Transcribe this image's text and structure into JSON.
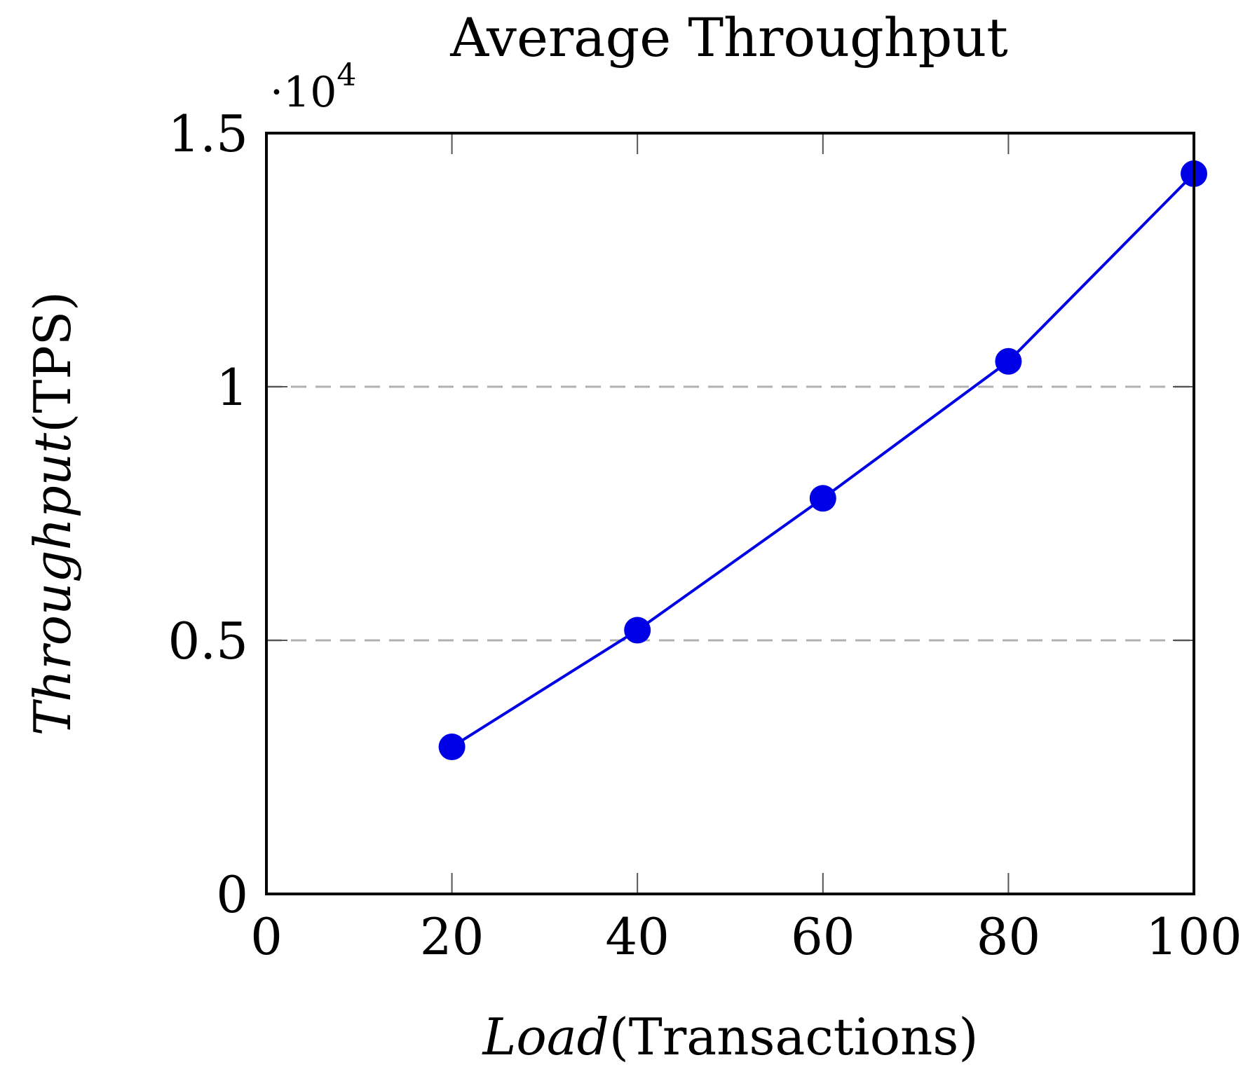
{
  "chart_data": {
    "type": "line",
    "title": "Average Throughput",
    "xlabel": "Load(Transactions)",
    "xlabel_italic_part": "Load",
    "xlabel_roman_part": "(Transactions)",
    "ylabel": "Throughput(TPS)",
    "ylabel_italic_part": "Throughput",
    "ylabel_roman_part": "(TPS)",
    "y_multiplier_label": "·10",
    "y_multiplier_exponent": "4",
    "xlim": [
      0,
      100
    ],
    "ylim": [
      0,
      15000
    ],
    "x_ticks": [
      0,
      20,
      40,
      60,
      80,
      100
    ],
    "x_tick_labels": [
      "0",
      "20",
      "40",
      "60",
      "80",
      "100"
    ],
    "y_ticks": [
      0,
      5000,
      10000,
      15000
    ],
    "y_tick_labels": [
      "0",
      "0.5",
      "1",
      "1.5"
    ],
    "grid": "horizontal dashed",
    "colors": {
      "series": "#0000e6",
      "grid": "#b0b0b0"
    },
    "series": [
      {
        "x": [
          20,
          40,
          60,
          80,
          100
        ],
        "values": [
          2900,
          5200,
          7800,
          10500,
          14200
        ]
      }
    ]
  }
}
